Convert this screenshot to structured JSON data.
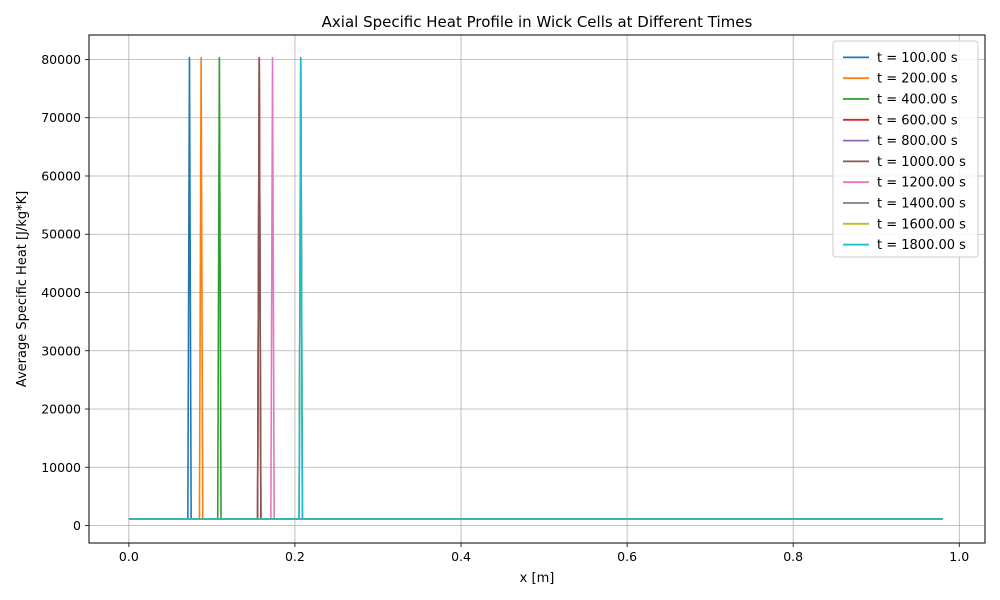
{
  "chart_data": {
    "type": "line",
    "title": "Axial Specific Heat Profile in Wick Cells at Different Times",
    "xlabel": "x [m]",
    "ylabel": "Average Specific Heat [J/kg*K]",
    "xlim": [
      -0.048,
      1.031
    ],
    "ylim": [
      -3000,
      84200
    ],
    "xticks": [
      0.0,
      0.2,
      0.4,
      0.6,
      0.8,
      1.0
    ],
    "xtick_labels": [
      "0.0",
      "0.2",
      "0.4",
      "0.6",
      "0.8",
      "1.0"
    ],
    "yticks": [
      0,
      10000,
      20000,
      30000,
      40000,
      50000,
      60000,
      70000,
      80000
    ],
    "ytick_labels": [
      "0",
      "10000",
      "20000",
      "30000",
      "40000",
      "50000",
      "60000",
      "70000",
      "80000"
    ],
    "grid": true,
    "legend_position": "top-right",
    "baseline_value": 1100,
    "x_range": [
      0.0,
      0.98
    ],
    "series": [
      {
        "name": "t = 100.00 s",
        "color": "#1f77b4",
        "x": [
          0.0,
          0.071,
          0.073,
          0.075,
          0.98
        ],
        "y": [
          1100,
          1100,
          80300,
          1100,
          1100
        ]
      },
      {
        "name": "t = 200.00 s",
        "color": "#ff7f0e",
        "x": [
          0.0,
          0.085,
          0.087,
          0.089,
          0.98
        ],
        "y": [
          1100,
          1100,
          80300,
          1100,
          1100
        ]
      },
      {
        "name": "t = 400.00 s",
        "color": "#2ca02c",
        "x": [
          0.0,
          0.107,
          0.109,
          0.111,
          0.98
        ],
        "y": [
          1100,
          1100,
          80300,
          1100,
          1100
        ]
      },
      {
        "name": "t = 600.00 s",
        "color": "#d62728",
        "x": [
          0.0,
          0.155,
          0.157,
          0.159,
          0.98
        ],
        "y": [
          1100,
          1100,
          80300,
          1100,
          1100
        ]
      },
      {
        "name": "t = 800.00 s",
        "color": "#9467bd",
        "x": [
          0.0,
          0.155,
          0.157,
          0.159,
          0.98
        ],
        "y": [
          1100,
          1100,
          80300,
          1100,
          1100
        ]
      },
      {
        "name": "t = 1000.00 s",
        "color": "#8c564b",
        "x": [
          0.0,
          0.155,
          0.157,
          0.159,
          0.98
        ],
        "y": [
          1100,
          1100,
          80300,
          1100,
          1100
        ]
      },
      {
        "name": "t = 1200.00 s",
        "color": "#e377c2",
        "x": [
          0.0,
          0.171,
          0.173,
          0.175,
          0.98
        ],
        "y": [
          1100,
          1100,
          80300,
          1100,
          1100
        ]
      },
      {
        "name": "t = 1400.00 s",
        "color": "#7f7f7f",
        "x": [
          0.0,
          0.205,
          0.207,
          0.209,
          0.98
        ],
        "y": [
          1100,
          1100,
          80300,
          1100,
          1100
        ]
      },
      {
        "name": "t = 1600.00 s",
        "color": "#bcbd22",
        "x": [
          0.0,
          0.205,
          0.207,
          0.209,
          0.98
        ],
        "y": [
          1100,
          1100,
          80300,
          1100,
          1100
        ]
      },
      {
        "name": "t = 1800.00 s",
        "color": "#17becf",
        "x": [
          0.0,
          0.205,
          0.207,
          0.209,
          0.98
        ],
        "y": [
          1100,
          1100,
          80300,
          1100,
          1100
        ]
      }
    ]
  }
}
